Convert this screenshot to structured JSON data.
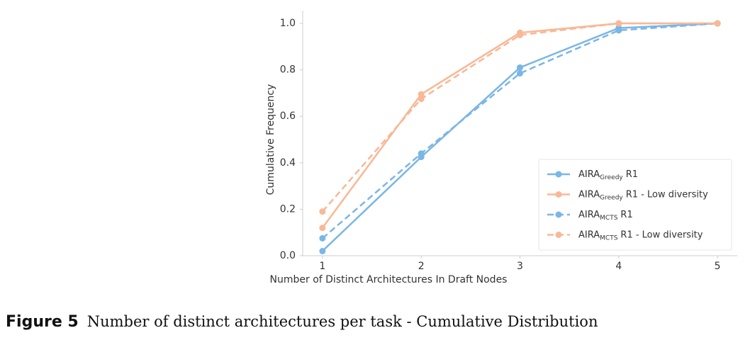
{
  "chart_data": {
    "type": "line",
    "xlabel": "Number of Distinct Architectures In Draft Nodes",
    "ylabel": "Cumulative Frequency",
    "x": [
      1,
      2,
      3,
      4,
      5
    ],
    "xlim": [
      0.8,
      5.2
    ],
    "xticks": [
      1,
      2,
      3,
      4,
      5
    ],
    "ylim": [
      0,
      1.055
    ],
    "yticks": [
      {
        "value": 0,
        "label": "0.0"
      },
      {
        "value": 0.2,
        "label": "0.2"
      },
      {
        "value": 0.4,
        "label": "0.4"
      },
      {
        "value": 0.6,
        "label": "0.6"
      },
      {
        "value": 0.8,
        "label": "0.8"
      },
      {
        "value": 1,
        "label": "1.0"
      }
    ],
    "legend": "lower right",
    "series": [
      {
        "name": "AIRA",
        "subscript": "Greedy",
        "suffix": "R1",
        "color": "#7ab6e6",
        "linestyle": "solid",
        "values": [
          0.02,
          0.425,
          0.81,
          0.98,
          1.0
        ]
      },
      {
        "name": "AIRA",
        "subscript": "Greedy",
        "suffix": "R1 - Low diversity",
        "color": "#f9b896",
        "linestyle": "solid",
        "values": [
          0.12,
          0.695,
          0.96,
          1.0,
          1.0
        ]
      },
      {
        "name": "AIRA",
        "subscript": "MCTS",
        "suffix": "R1",
        "color": "#7ab6e6",
        "linestyle": "dashed",
        "values": [
          0.075,
          0.44,
          0.785,
          0.97,
          1.0
        ]
      },
      {
        "name": "AIRA",
        "subscript": "MCTS",
        "suffix": "R1 - Low diversity",
        "color": "#f9b896",
        "linestyle": "dashed",
        "values": [
          0.19,
          0.675,
          0.95,
          1.0,
          1.0
        ]
      }
    ]
  },
  "caption": {
    "label": "Figure 5",
    "text": "Number of distinct architectures per task - Cumulative Distribution"
  }
}
